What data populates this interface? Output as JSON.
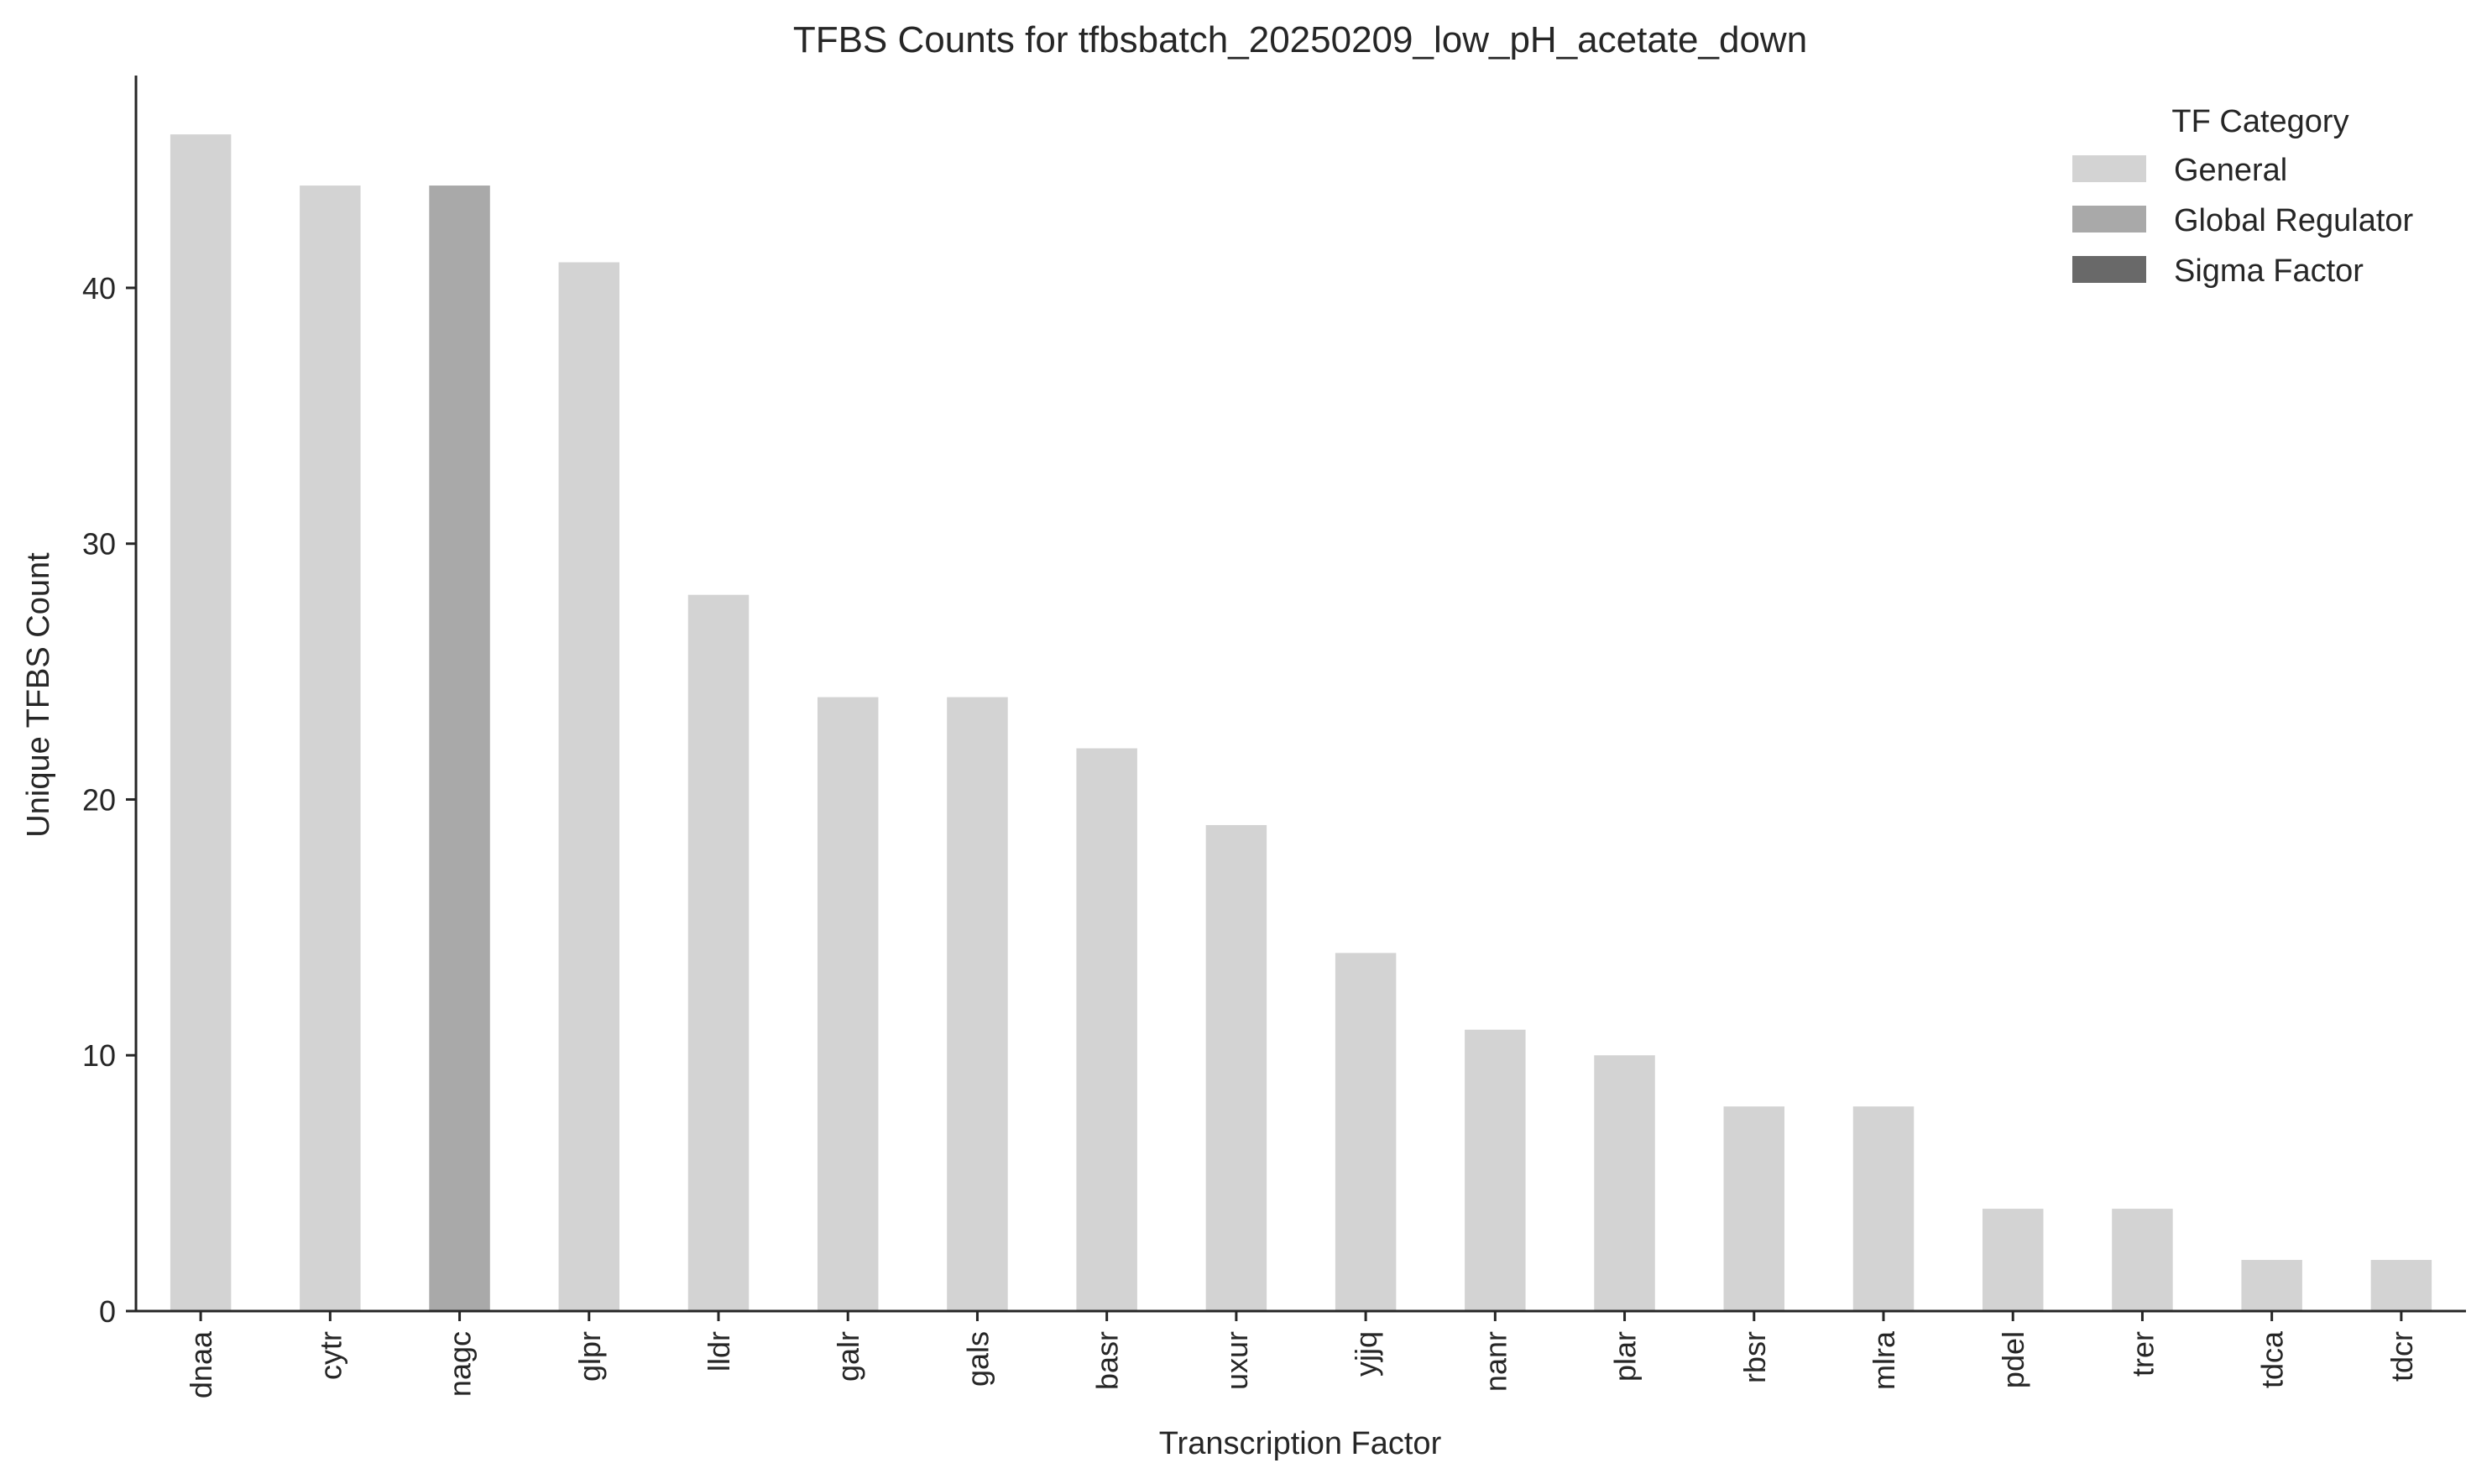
{
  "chart_data": {
    "type": "bar",
    "title": "TFBS Counts for tfbsbatch_20250209_low_pH_acetate_down",
    "xlabel": "Transcription Factor",
    "ylabel": "Unique TFBS Count",
    "ylim": [
      0,
      48.3
    ],
    "yticks": [
      0,
      10,
      20,
      30,
      40
    ],
    "categories": [
      "dnaa",
      "cytr",
      "nagc",
      "glpr",
      "lldr",
      "galr",
      "gals",
      "basr",
      "uxur",
      "yjjq",
      "nanr",
      "plar",
      "rbsr",
      "mlra",
      "pdel",
      "trer",
      "tdca",
      "tdcr"
    ],
    "values": [
      46,
      44,
      44,
      41,
      28,
      24,
      24,
      22,
      19,
      14,
      11,
      10,
      8,
      8,
      4,
      4,
      2,
      2
    ],
    "bar_category": [
      "General",
      "General",
      "Global Regulator",
      "General",
      "General",
      "General",
      "General",
      "General",
      "General",
      "General",
      "General",
      "General",
      "General",
      "General",
      "General",
      "General",
      "General",
      "General"
    ],
    "grid": false,
    "legend": {
      "title": "TF Category",
      "placement": "top-right",
      "entries": [
        {
          "label": "General",
          "color": "#d3d3d3"
        },
        {
          "label": "Global Regulator",
          "color": "#a9a9a9"
        },
        {
          "label": "Sigma Factor",
          "color": "#696969"
        }
      ]
    }
  }
}
